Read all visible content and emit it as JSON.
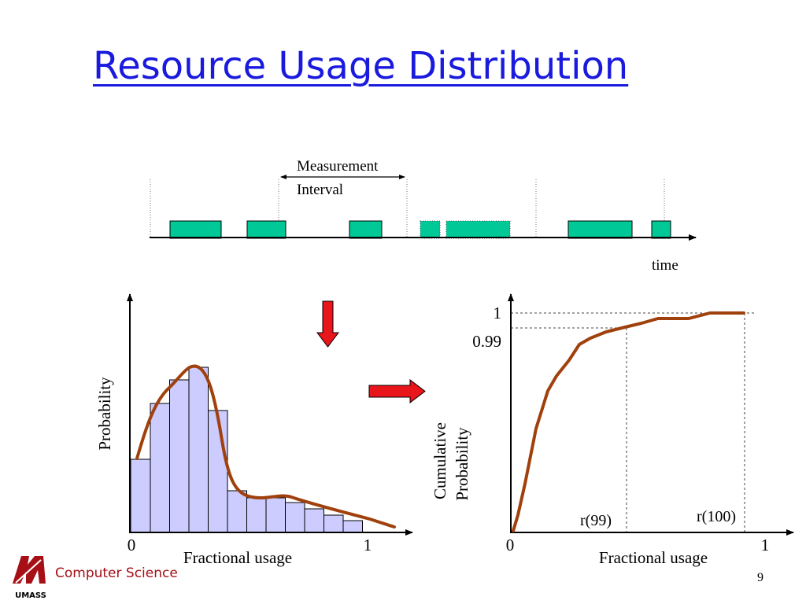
{
  "slide": {
    "title": "Resource Usage Distribution",
    "footer": "Computer Science",
    "logo_text": "UMASS",
    "page_number": "9"
  },
  "timeline": {
    "label_line1": "Measurement",
    "label_line2": "Interval",
    "axis_label": "time",
    "bar_color": "#00c896"
  },
  "histogram": {
    "ylabel": "Probability",
    "xlabel": "Fractional usage",
    "x_min_label": "0",
    "x_max_label": "1",
    "bar_fill": "#ccccff",
    "curve_color": "#a0410d"
  },
  "cdf": {
    "ylabel_line1": "Cumulative",
    "ylabel_line2": "Probability",
    "xlabel": "Fractional usage",
    "x_min_label": "0",
    "x_max_label": "1",
    "y_top_label": "1",
    "y_099_label": "0.99",
    "r99_label": "r(99)",
    "r100_label": "r(100)",
    "curve_color": "#a0410d"
  },
  "arrows": {
    "color": "#e8151b"
  }
}
